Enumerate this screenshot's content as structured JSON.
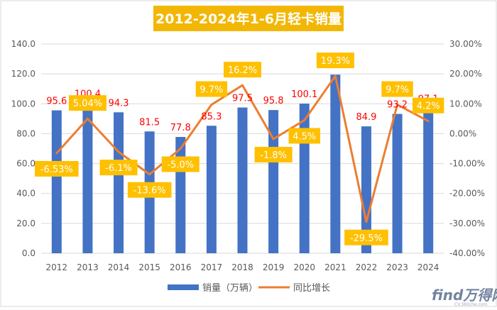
{
  "chart_data": {
    "type": "bar+line",
    "title": "2012-2024年1-6月轻卡销量",
    "categories": [
      "2012",
      "2013",
      "2014",
      "2015",
      "2016",
      "2017",
      "2018",
      "2019",
      "2020",
      "2021",
      "2022",
      "2023",
      "2024"
    ],
    "series": [
      {
        "name": "销量（万辆）",
        "type": "bar",
        "axis": "left",
        "values": [
          95.6,
          100.4,
          94.3,
          81.5,
          77.8,
          85.3,
          97.5,
          95.8,
          100.1,
          119.5,
          84.9,
          93.2,
          97.1
        ],
        "labels": [
          "95.6",
          "100.4",
          "94.3",
          "81.5",
          "77.8",
          "85.3",
          "97.5",
          "95.8",
          "100.1",
          "119.5",
          "84.9",
          "93.2",
          "97.1"
        ]
      },
      {
        "name": "同比增长",
        "type": "line",
        "axis": "right",
        "values": [
          -6.53,
          5.04,
          -6.1,
          -13.6,
          -5.0,
          9.7,
          16.2,
          -1.8,
          4.5,
          19.3,
          -29.5,
          9.7,
          4.2
        ],
        "labels": [
          "-6.53%",
          "5.04%",
          "-6.1%",
          "-13.6%",
          "-5.0%",
          "9.7%",
          "16.2%",
          "-1.8%",
          "4.5%",
          "19.3%",
          "-29.5%",
          "9.7%",
          "4.2%"
        ]
      }
    ],
    "yleft": {
      "min": 0,
      "max": 140,
      "step": 20,
      "ticks": [
        "0.0",
        "20.0",
        "40.0",
        "60.0",
        "80.0",
        "100.0",
        "120.0",
        "140.0"
      ]
    },
    "yright": {
      "min": -40,
      "max": 30,
      "step": 10,
      "ticks": [
        "-40.00%",
        "-30.00%",
        "-20.00%",
        "-10.00%",
        "0.00%",
        "10.00%",
        "20.00%",
        "30.00%"
      ]
    },
    "grid": true,
    "legend_position": "bottom",
    "colors": {
      "bar": "#4472C4",
      "line": "#ED7D31",
      "bar_label": "#FF0000",
      "line_label_bg": "#FFC000",
      "line_label_text": "#ffffff",
      "title_bg": "#F2B705",
      "title_text": "#ffffff",
      "grid": "#D9D9D9",
      "axis_text": "#595959"
    }
  },
  "watermark": {
    "text": "find万得网",
    "sub": "CV.360che.com"
  }
}
